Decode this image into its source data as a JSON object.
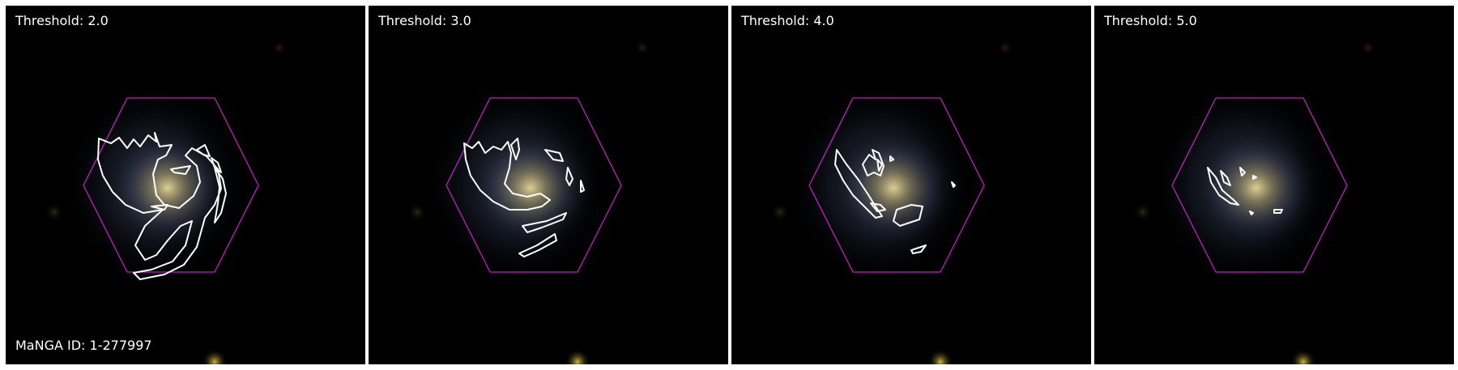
{
  "panels": [
    {
      "threshold_label": "Threshold: 2.0"
    },
    {
      "threshold_label": "Threshold: 3.0"
    },
    {
      "threshold_label": "Threshold: 4.0"
    },
    {
      "threshold_label": "Threshold: 5.0"
    }
  ],
  "galaxy_id_label": "MaNGA ID: 1-277997",
  "colors": {
    "background": "#000000",
    "hexagon": "#c020c0",
    "contour": "#ffffff",
    "galaxy_core": "#d8c98a",
    "galaxy_disk": "#4a5a7a"
  }
}
